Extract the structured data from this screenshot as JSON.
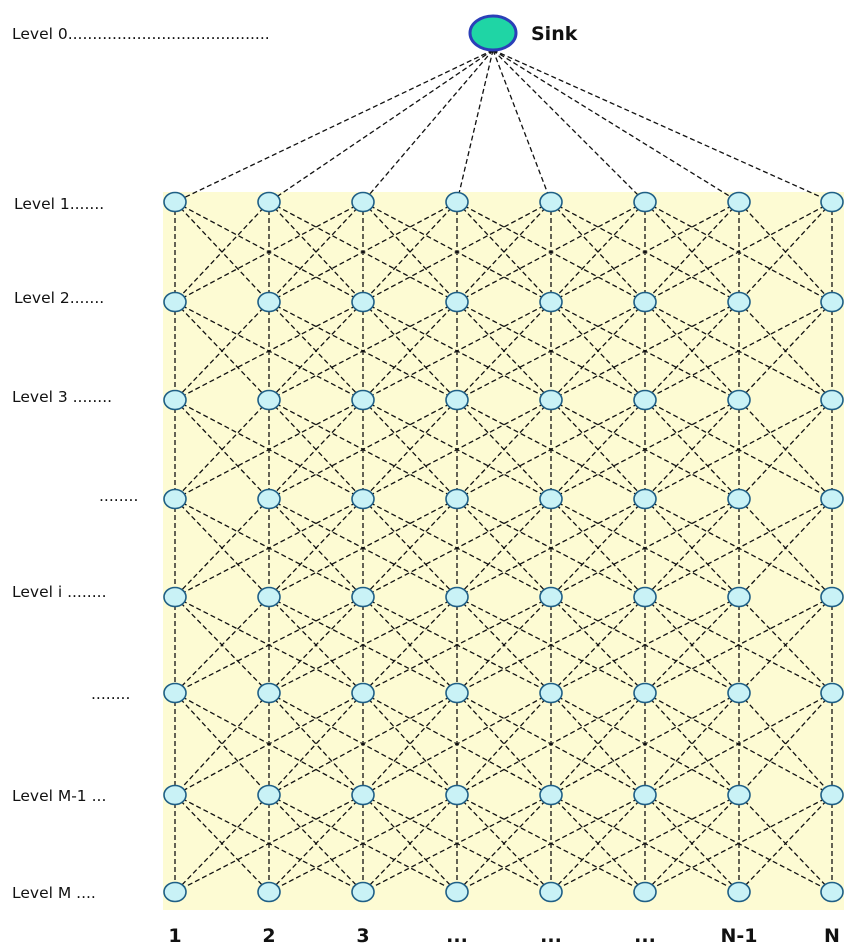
{
  "sink": {
    "label": "Sink"
  },
  "levels": [
    "Level 0.........................................",
    "Level 1.......",
    "Level 2.......",
    "Level 3 ........",
    "........",
    "Level i ........",
    "........",
    "Level M-1 ...",
    "Level M ...."
  ],
  "columns": [
    "1",
    "2",
    "3",
    "...",
    "...",
    "...",
    "N-1",
    "N"
  ],
  "colors": {
    "grid_background": "#fdfbd3",
    "node_fill": "#c9f2f6",
    "node_stroke": "#1f5f86",
    "sink_fill": "#1fd5a5",
    "sink_stroke": "#2b3fb8"
  }
}
